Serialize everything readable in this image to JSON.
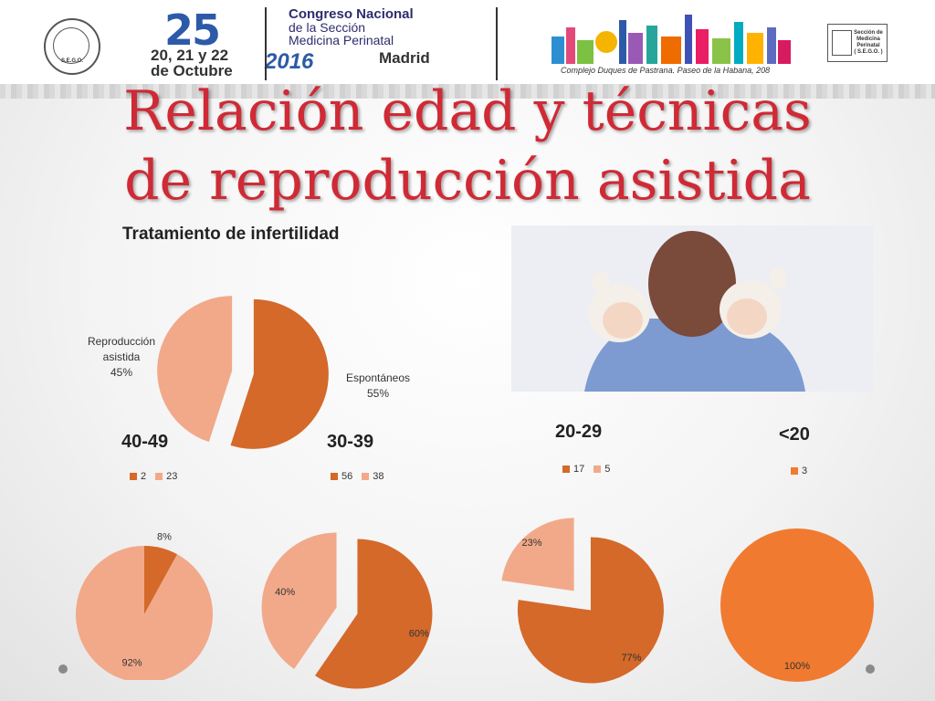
{
  "banner": {
    "number": "25",
    "dates": [
      "20, 21 y 22",
      "de Octubre"
    ],
    "year": "2016",
    "congress_lines": [
      "Congreso Nacional",
      "de la Sección",
      "Medicina Perinatal"
    ],
    "city": "Madrid",
    "venue": "Complejo Duques de Pastrana. Paseo de la Habana, 208",
    "left_logo_text": "S.E.G.O.",
    "right_logo_text": [
      "Sección de",
      "Medicina",
      "Perinatal",
      "( S.E.G.O. )"
    ]
  },
  "title_lines": [
    "Relación edad y técnicas",
    "de reproducción asistida"
  ],
  "colors": {
    "title": "#cf2a35",
    "dark_orange": "#d4692a",
    "light_salmon": "#f2a98a",
    "bright_orange": "#f07a30"
  },
  "chart_data": [
    {
      "type": "pie",
      "title": "Tratamiento de infertilidad",
      "slices": [
        {
          "label": "Espontáneos",
          "value": 55,
          "display": "55%",
          "color": "#d4692a"
        },
        {
          "label": "Reproducción asistida",
          "value": 45,
          "display": "45%",
          "color": "#f2a98a"
        }
      ],
      "label_lines": {
        "espontaneos": [
          "Espontáneos",
          "55%"
        ],
        "reproduccion": [
          "Reproducción",
          "asistida",
          "45%"
        ]
      }
    },
    {
      "type": "pie",
      "title": "40-49",
      "legend": [
        "2",
        "23"
      ],
      "values": [
        2,
        23
      ],
      "percent_labels": [
        "8%",
        "92%"
      ],
      "colors": [
        "#d4692a",
        "#f2a98a"
      ]
    },
    {
      "type": "pie",
      "title": "30-39",
      "legend": [
        "56",
        "38"
      ],
      "values": [
        56,
        38
      ],
      "percent_labels": [
        "60%",
        "40%"
      ],
      "colors": [
        "#d4692a",
        "#f2a98a"
      ]
    },
    {
      "type": "pie",
      "title": "20-29",
      "legend": [
        "17",
        "5"
      ],
      "values": [
        17,
        5
      ],
      "percent_labels": [
        "77%",
        "23%"
      ],
      "colors": [
        "#d4692a",
        "#f2a98a"
      ]
    },
    {
      "type": "pie",
      "title": "<20",
      "legend": [
        "3"
      ],
      "values": [
        3
      ],
      "percent_labels": [
        "100%"
      ],
      "colors": [
        "#f07a30"
      ]
    }
  ]
}
